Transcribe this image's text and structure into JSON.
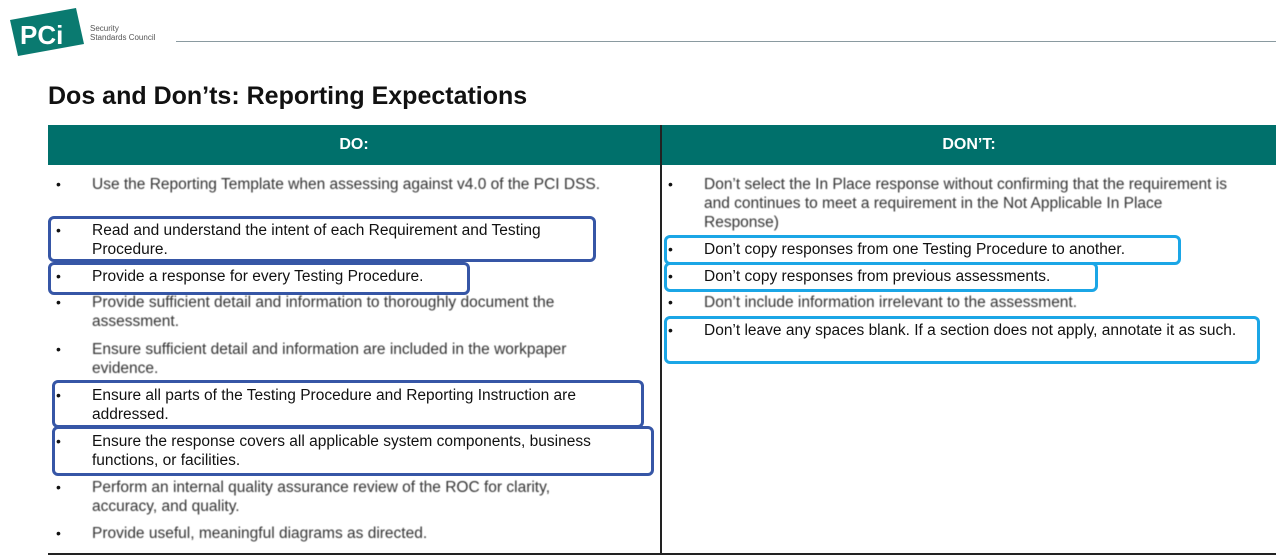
{
  "header": {
    "logo_text": "PCI",
    "logo_subtext": [
      "Security",
      "Standards Council"
    ],
    "title": "Dos and Don’ts: Reporting Expectations"
  },
  "colors": {
    "header_bg": "#00706b",
    "highlight_do": "#3656a6",
    "highlight_dont": "#1ba6e6"
  },
  "table": {
    "do_header": "DO:",
    "dont_header": "DON’T:",
    "do_items": [
      {
        "text": "Use the Reporting Template when assessing against v4.0 of the PCI DSS.",
        "highlighted": false
      },
      {
        "text": "Read and understand the intent of each Requirement and Testing Procedure.",
        "highlighted": true
      },
      {
        "text": "Provide a response for every Testing Procedure.",
        "highlighted": true
      },
      {
        "text": "Provide sufficient detail and information to thoroughly document the assessment.",
        "highlighted": false
      },
      {
        "text": "Ensure sufficient detail and information are included in the workpaper evidence.",
        "highlighted": false
      },
      {
        "text": "Ensure all parts of the Testing Procedure and Reporting Instruction are addressed.",
        "highlighted": true
      },
      {
        "text": "Ensure the response covers all applicable system components, business functions, or facilities.",
        "highlighted": true
      },
      {
        "text": "Perform an internal quality assurance review of the ROC for clarity, accuracy, and quality.",
        "highlighted": false
      },
      {
        "text": "Provide useful, meaningful diagrams as directed.",
        "highlighted": false
      }
    ],
    "dont_items": [
      {
        "text": "Don’t select the In Place response without confirming that the requirement is and continues to meet a requirement in the Not Applicable In Place Response)",
        "highlighted": false
      },
      {
        "text": "Don’t copy responses from one Testing Procedure to another.",
        "highlighted": true
      },
      {
        "text": "Don’t copy responses from previous assessments.",
        "highlighted": true
      },
      {
        "text": "Don’t include information irrelevant to the assessment.",
        "highlighted": false
      },
      {
        "text": "Don’t leave any spaces blank. If a section does not apply, annotate it as such.",
        "highlighted": true
      }
    ]
  }
}
